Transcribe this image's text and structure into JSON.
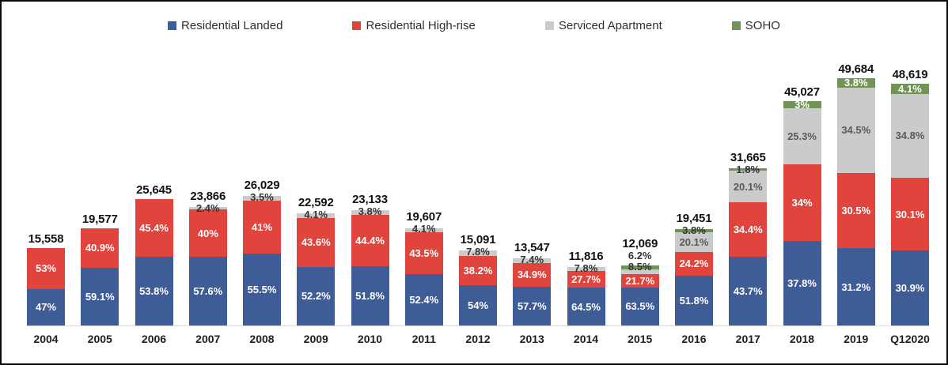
{
  "legend": {
    "items": [
      {
        "label": "Residential Landed",
        "color": "#3E5C96"
      },
      {
        "label": "Residential High-rise",
        "color": "#E0443C"
      },
      {
        "label": "Serviced Apartment",
        "color": "#CBCBCB"
      },
      {
        "label": "SOHO",
        "color": "#729356"
      }
    ]
  },
  "chart_data": {
    "type": "bar",
    "subtype": "stacked",
    "title": "",
    "xlabel": "",
    "ylabel": "",
    "grid": false,
    "legend_position": "top",
    "ylim": [
      0,
      49684
    ],
    "categories": [
      "2004",
      "2005",
      "2006",
      "2007",
      "2008",
      "2009",
      "2010",
      "2011",
      "2012",
      "2013",
      "2014",
      "2015",
      "2016",
      "2017",
      "2018",
      "2019",
      "Q12020"
    ],
    "totals": [
      15558,
      19577,
      25645,
      23866,
      26029,
      22592,
      23133,
      19607,
      15091,
      13547,
      11816,
      12069,
      19451,
      31665,
      45027,
      49684,
      48619
    ],
    "total_labels": [
      "15,558",
      "19,577",
      "25,645",
      "23,866",
      "26,029",
      "22,592",
      "23,133",
      "19,607",
      "15,091",
      "13,547",
      "11,816",
      "12,069",
      "19,451",
      "31,665",
      "45,027",
      "49,684",
      "48,619"
    ],
    "series": [
      {
        "name": "Residential Landed",
        "color": "#3E5C96",
        "label_color_inside": "#ffffff",
        "pct": [
          47,
          59.1,
          53.8,
          57.6,
          55.5,
          52.2,
          51.8,
          52.4,
          54,
          57.7,
          64.5,
          63.5,
          51.8,
          43.7,
          37.8,
          31.2,
          30.9
        ]
      },
      {
        "name": "Residential High-rise",
        "color": "#E0443C",
        "label_color_inside": "#ffffff",
        "pct": [
          53,
          40.9,
          45.4,
          40,
          41,
          43.6,
          44.4,
          43.5,
          38.2,
          34.9,
          27.7,
          21.7,
          24.2,
          34.4,
          34,
          30.5,
          30.1
        ]
      },
      {
        "name": "Serviced Apartment",
        "color": "#CBCBCB",
        "label_color_inside": "#595959",
        "pct": [
          0,
          0,
          0,
          2.4,
          3.5,
          4.1,
          3.8,
          4.1,
          7.8,
          7.4,
          7.8,
          8.5,
          20.1,
          20.1,
          25.3,
          34.5,
          34.8
        ]
      },
      {
        "name": "SOHO",
        "color": "#729356",
        "label_color_inside": "#ffffff",
        "pct": [
          0,
          0,
          0,
          0,
          0,
          0,
          0,
          0,
          0,
          0,
          0,
          6.2,
          3.8,
          1.8,
          3,
          3.8,
          4.1
        ]
      }
    ]
  }
}
